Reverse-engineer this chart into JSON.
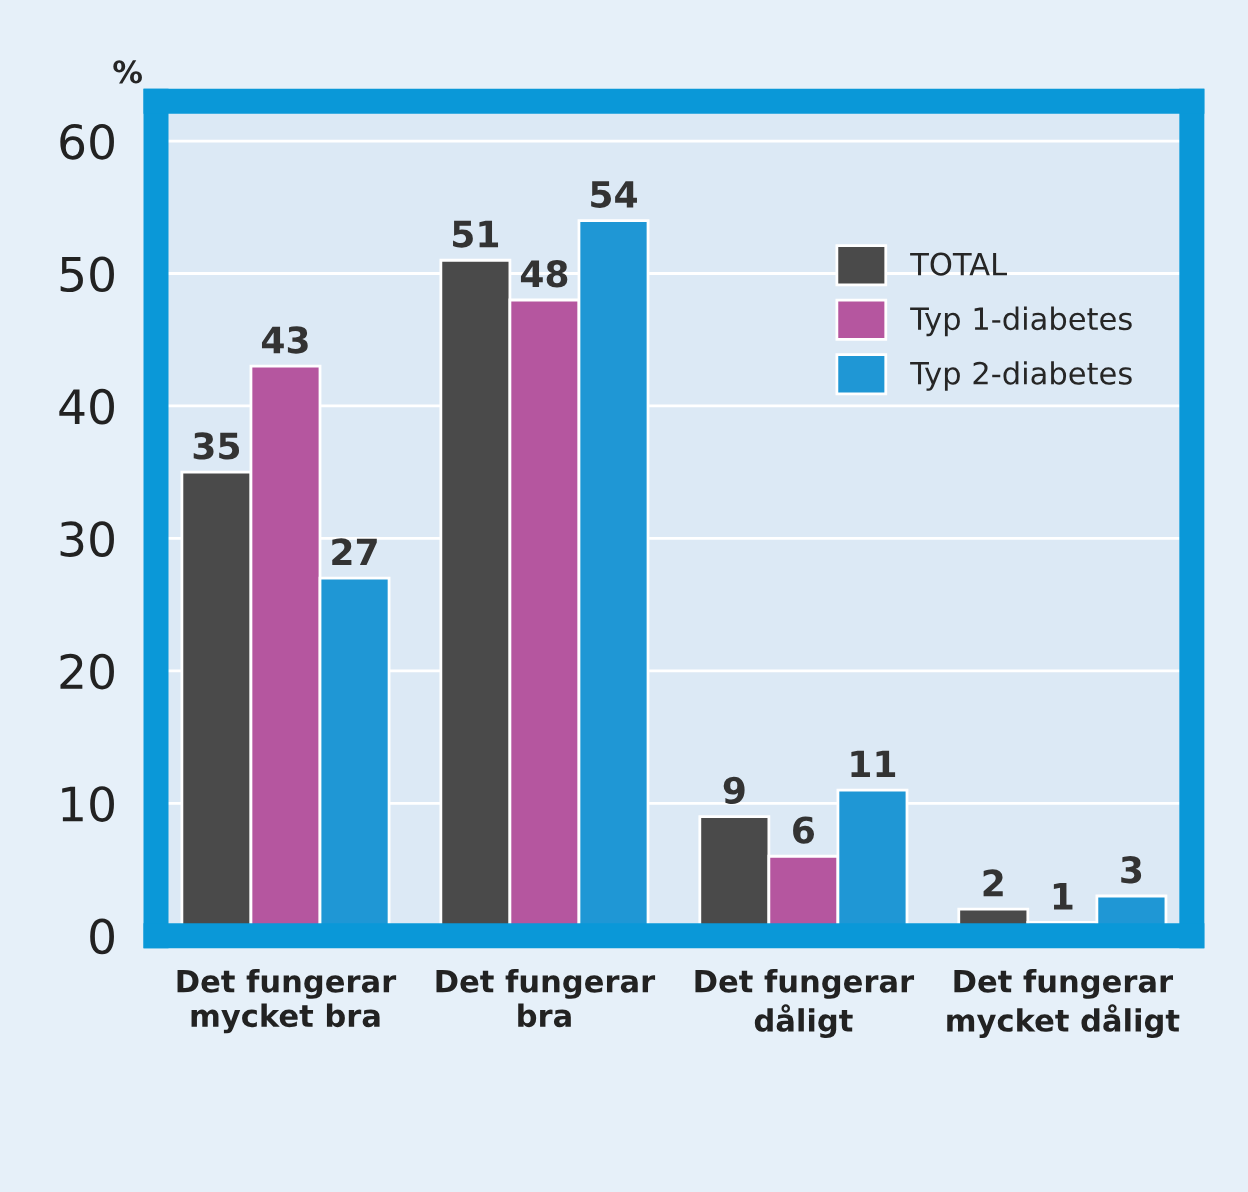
{
  "chart_data": {
    "type": "bar",
    "ylabel": "%",
    "categories": [
      "Det fungerar\nmycket bra",
      "Det fungerar\nbra",
      "Det fungerar\ndåligt",
      "Det fungerar\nmycket dåligt"
    ],
    "series": [
      {
        "name": "TOTAL",
        "color": "#4a4a4a",
        "values": [
          35,
          51,
          9,
          2
        ]
      },
      {
        "name": "Typ 1-diabetes",
        "color": "#b5569f",
        "values": [
          43,
          48,
          6,
          1
        ]
      },
      {
        "name": "Typ 2-diabetes",
        "color": "#1f97d5",
        "values": [
          27,
          54,
          11,
          3
        ]
      }
    ],
    "ylim": [
      0,
      63
    ],
    "yticks": [
      0,
      10,
      20,
      30,
      40,
      50,
      60
    ],
    "grid": "y",
    "legend": "top right",
    "data_labels": true
  }
}
